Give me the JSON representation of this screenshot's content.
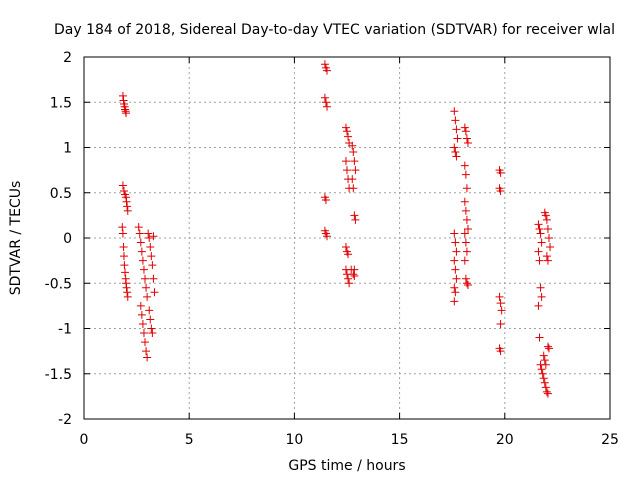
{
  "chart_data": {
    "type": "scatter",
    "title": "Day 184 of 2018, Sidereal Day-to-day VTEC variation (SDTVAR) for receiver wlal",
    "xlabel": "GPS time / hours",
    "ylabel": "SDTVAR / TECUs",
    "xlim": [
      0,
      25
    ],
    "ylim": [
      -2,
      2
    ],
    "xticks": [
      "0",
      "5",
      "10",
      "15",
      "20",
      "25"
    ],
    "yticks": [
      "-2",
      "-1.5",
      "-1",
      "-0.5",
      "0",
      "0.5",
      "1",
      "1.5",
      "2"
    ],
    "grid": true,
    "marker": "+",
    "marker_color": "#e00000",
    "series": [
      {
        "name": "SDTVAR",
        "points": [
          [
            1.85,
            1.57
          ],
          [
            1.88,
            1.52
          ],
          [
            1.9,
            1.48
          ],
          [
            1.93,
            1.45
          ],
          [
            1.95,
            1.42
          ],
          [
            1.98,
            1.4
          ],
          [
            2.0,
            1.38
          ],
          [
            1.85,
            0.58
          ],
          [
            1.9,
            0.52
          ],
          [
            1.95,
            0.48
          ],
          [
            2.0,
            0.45
          ],
          [
            2.02,
            0.4
          ],
          [
            2.05,
            0.35
          ],
          [
            2.08,
            0.3
          ],
          [
            1.82,
            0.12
          ],
          [
            1.85,
            0.05
          ],
          [
            1.88,
            -0.1
          ],
          [
            1.9,
            -0.2
          ],
          [
            1.92,
            -0.3
          ],
          [
            1.95,
            -0.38
          ],
          [
            1.98,
            -0.45
          ],
          [
            2.0,
            -0.5
          ],
          [
            2.02,
            -0.55
          ],
          [
            2.05,
            -0.6
          ],
          [
            2.08,
            -0.65
          ],
          [
            2.6,
            0.12
          ],
          [
            2.65,
            0.05
          ],
          [
            2.7,
            -0.05
          ],
          [
            2.75,
            -0.15
          ],
          [
            2.8,
            -0.25
          ],
          [
            2.85,
            -0.35
          ],
          [
            2.9,
            -0.45
          ],
          [
            2.95,
            -0.55
          ],
          [
            3.0,
            -0.65
          ],
          [
            2.7,
            -0.75
          ],
          [
            2.75,
            -0.85
          ],
          [
            2.8,
            -0.95
          ],
          [
            2.85,
            -1.05
          ],
          [
            2.9,
            -1.15
          ],
          [
            2.95,
            -1.25
          ],
          [
            3.0,
            -1.32
          ],
          [
            3.05,
            0.05
          ],
          [
            3.1,
            0.0
          ],
          [
            3.15,
            -0.1
          ],
          [
            3.2,
            -0.2
          ],
          [
            3.25,
            -0.3
          ],
          [
            3.3,
            -0.45
          ],
          [
            3.35,
            -0.6
          ],
          [
            3.1,
            -0.8
          ],
          [
            3.15,
            -0.9
          ],
          [
            3.2,
            -1.0
          ],
          [
            3.25,
            -1.05
          ],
          [
            3.3,
            0.02
          ],
          [
            11.45,
            1.92
          ],
          [
            11.5,
            1.88
          ],
          [
            11.55,
            1.85
          ],
          [
            11.45,
            1.55
          ],
          [
            11.5,
            1.5
          ],
          [
            11.55,
            1.45
          ],
          [
            11.45,
            0.45
          ],
          [
            11.5,
            0.42
          ],
          [
            11.45,
            0.08
          ],
          [
            11.5,
            0.05
          ],
          [
            11.55,
            0.02
          ],
          [
            12.45,
            1.22
          ],
          [
            12.5,
            1.18
          ],
          [
            12.55,
            1.12
          ],
          [
            12.6,
            1.05
          ],
          [
            12.45,
            0.85
          ],
          [
            12.5,
            0.75
          ],
          [
            12.55,
            0.65
          ],
          [
            12.6,
            0.55
          ],
          [
            12.45,
            -0.1
          ],
          [
            12.5,
            -0.15
          ],
          [
            12.55,
            -0.18
          ],
          [
            12.45,
            -0.35
          ],
          [
            12.5,
            -0.4
          ],
          [
            12.55,
            -0.45
          ],
          [
            12.6,
            -0.5
          ],
          [
            12.7,
            -0.35
          ],
          [
            12.8,
            -0.4
          ],
          [
            12.85,
            -0.42
          ],
          [
            12.75,
            1.02
          ],
          [
            12.8,
            0.95
          ],
          [
            12.85,
            0.85
          ],
          [
            12.9,
            0.75
          ],
          [
            12.75,
            0.65
          ],
          [
            12.8,
            0.55
          ],
          [
            12.85,
            0.25
          ],
          [
            12.9,
            0.2
          ],
          [
            12.85,
            -0.35
          ],
          [
            17.6,
            1.4
          ],
          [
            17.65,
            1.3
          ],
          [
            17.7,
            1.2
          ],
          [
            17.75,
            1.1
          ],
          [
            17.6,
            1.0
          ],
          [
            17.65,
            0.95
          ],
          [
            17.7,
            0.9
          ],
          [
            17.6,
            0.05
          ],
          [
            17.65,
            -0.05
          ],
          [
            17.7,
            -0.15
          ],
          [
            17.6,
            -0.25
          ],
          [
            17.65,
            -0.35
          ],
          [
            17.7,
            -0.45
          ],
          [
            17.6,
            -0.55
          ],
          [
            17.65,
            -0.6
          ],
          [
            17.6,
            -0.7
          ],
          [
            18.1,
            1.22
          ],
          [
            18.15,
            1.18
          ],
          [
            18.2,
            1.1
          ],
          [
            18.25,
            1.05
          ],
          [
            18.1,
            0.8
          ],
          [
            18.15,
            0.7
          ],
          [
            18.2,
            0.55
          ],
          [
            18.1,
            0.4
          ],
          [
            18.15,
            0.3
          ],
          [
            18.2,
            0.2
          ],
          [
            18.25,
            0.1
          ],
          [
            18.1,
            0.05
          ],
          [
            18.15,
            -0.05
          ],
          [
            18.2,
            -0.15
          ],
          [
            18.1,
            -0.25
          ],
          [
            18.15,
            -0.45
          ],
          [
            18.2,
            -0.5
          ],
          [
            18.25,
            -0.52
          ],
          [
            19.75,
            0.75
          ],
          [
            19.8,
            0.72
          ],
          [
            19.75,
            0.55
          ],
          [
            19.8,
            0.52
          ],
          [
            19.75,
            -0.65
          ],
          [
            19.8,
            -0.72
          ],
          [
            19.85,
            -0.8
          ],
          [
            19.8,
            -0.95
          ],
          [
            19.75,
            -1.22
          ],
          [
            19.8,
            -1.25
          ],
          [
            21.6,
            0.15
          ],
          [
            21.65,
            0.1
          ],
          [
            21.7,
            0.05
          ],
          [
            21.75,
            -0.05
          ],
          [
            21.6,
            -0.15
          ],
          [
            21.65,
            -0.25
          ],
          [
            21.7,
            -0.55
          ],
          [
            21.75,
            -0.65
          ],
          [
            21.6,
            -0.75
          ],
          [
            21.65,
            -1.1
          ],
          [
            21.7,
            -1.4
          ],
          [
            21.75,
            -1.45
          ],
          [
            21.8,
            -1.5
          ],
          [
            21.85,
            -1.55
          ],
          [
            21.9,
            -1.6
          ],
          [
            21.95,
            -1.65
          ],
          [
            22.0,
            -1.7
          ],
          [
            22.05,
            -1.72
          ],
          [
            21.9,
            0.28
          ],
          [
            21.95,
            0.25
          ],
          [
            22.0,
            0.2
          ],
          [
            22.05,
            0.1
          ],
          [
            22.1,
            0.0
          ],
          [
            22.15,
            -0.1
          ],
          [
            22.0,
            -0.2
          ],
          [
            22.05,
            -0.25
          ],
          [
            21.85,
            -1.3
          ],
          [
            21.9,
            -1.35
          ],
          [
            21.95,
            -1.4
          ],
          [
            22.05,
            -1.2
          ],
          [
            22.1,
            -1.22
          ]
        ]
      }
    ]
  }
}
